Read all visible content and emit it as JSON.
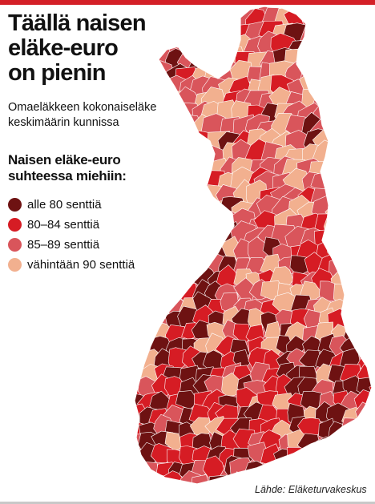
{
  "title": "Täällä naisen\neläke-euro\non pienin",
  "subtitle": "Omaeläkkeen kokonaiseläke\nkeskimäärin kunnissa",
  "legend": {
    "title": "Naisen eläke-euro\nsuhteessa miehiin:",
    "items": [
      {
        "label": "alle  80 senttiä",
        "color": "#6e1212"
      },
      {
        "label": "80–84 senttiä",
        "color": "#d61c24"
      },
      {
        "label": "85–89 senttiä",
        "color": "#d9555b"
      },
      {
        "label": "vähintään 90 senttiä",
        "color": "#f2b08f"
      }
    ]
  },
  "colors": {
    "accent_rule": "#d42027",
    "border": "#ffffff"
  },
  "source": "Lähde:  Eläketurvakeskus"
}
